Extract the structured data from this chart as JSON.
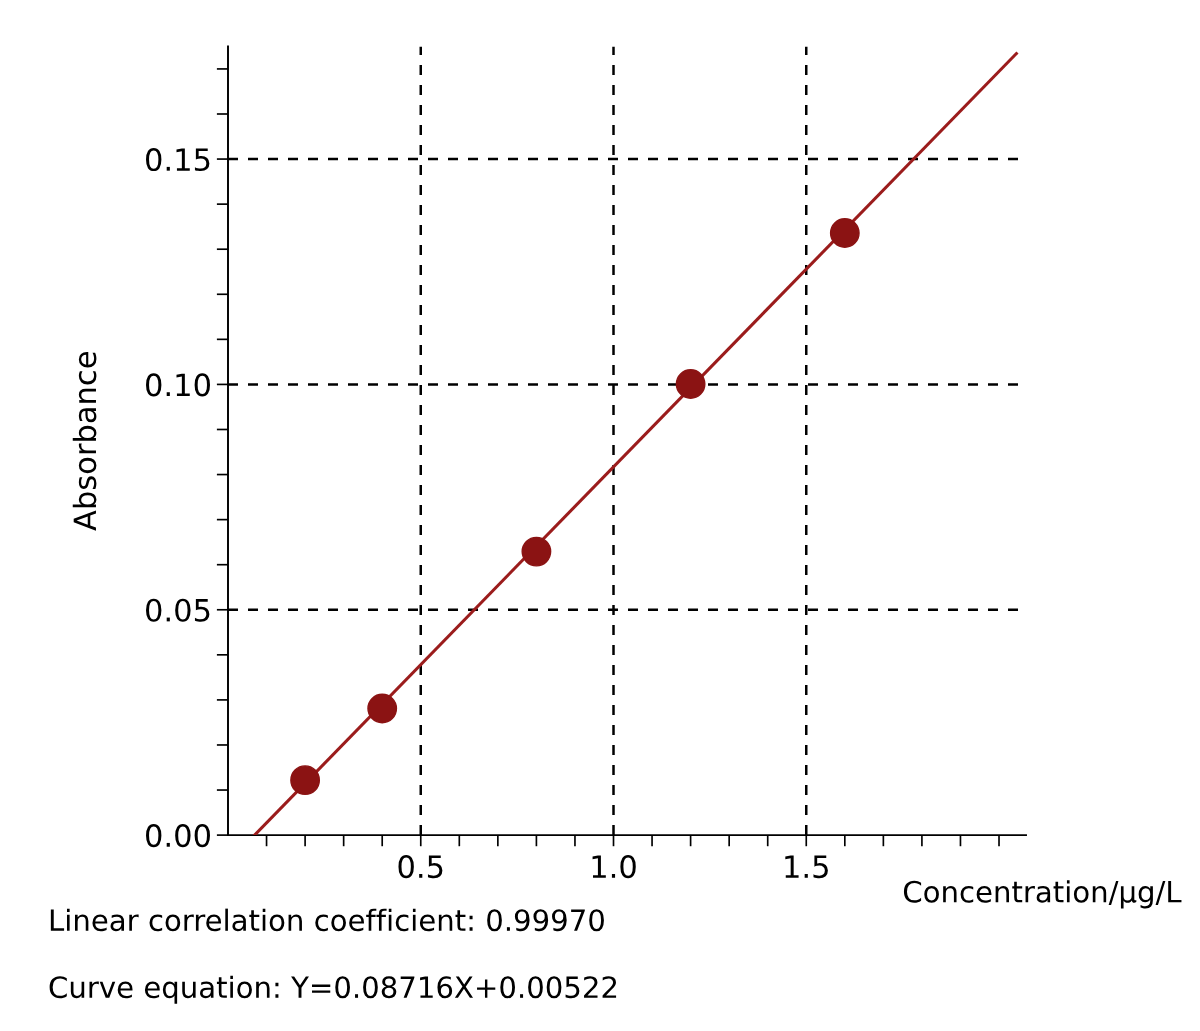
{
  "chart_data": {
    "type": "scatter",
    "xlabel": "Concentration/μg/L",
    "ylabel": "Absorbance",
    "xlim": [
      0,
      2.07
    ],
    "ylim": [
      0,
      0.175
    ],
    "xticks": [
      {
        "value": 0.1,
        "label": null
      },
      {
        "value": 0.2,
        "label": null
      },
      {
        "value": 0.3,
        "label": null
      },
      {
        "value": 0.4,
        "label": null
      },
      {
        "value": 0.5,
        "label": "0.5"
      },
      {
        "value": 0.6,
        "label": null
      },
      {
        "value": 0.7,
        "label": null
      },
      {
        "value": 0.8,
        "label": null
      },
      {
        "value": 0.9,
        "label": null
      },
      {
        "value": 1.0,
        "label": "1.0"
      },
      {
        "value": 1.1,
        "label": null
      },
      {
        "value": 1.2,
        "label": null
      },
      {
        "value": 1.3,
        "label": null
      },
      {
        "value": 1.4,
        "label": null
      },
      {
        "value": 1.5,
        "label": "1.5"
      },
      {
        "value": 1.6,
        "label": null
      },
      {
        "value": 1.7,
        "label": null
      },
      {
        "value": 1.8,
        "label": null
      },
      {
        "value": 1.9,
        "label": null
      },
      {
        "value": 2.0,
        "label": null
      }
    ],
    "yticks": [
      {
        "value": 0.0,
        "label": "0.00"
      },
      {
        "value": 0.01,
        "label": null
      },
      {
        "value": 0.02,
        "label": null
      },
      {
        "value": 0.03,
        "label": null
      },
      {
        "value": 0.04,
        "label": null
      },
      {
        "value": 0.05,
        "label": "0.05"
      },
      {
        "value": 0.06,
        "label": null
      },
      {
        "value": 0.07,
        "label": null
      },
      {
        "value": 0.08,
        "label": null
      },
      {
        "value": 0.09,
        "label": null
      },
      {
        "value": 0.1,
        "label": "0.10"
      },
      {
        "value": 0.11,
        "label": null
      },
      {
        "value": 0.12,
        "label": null
      },
      {
        "value": 0.13,
        "label": null
      },
      {
        "value": 0.14,
        "label": null
      },
      {
        "value": 0.15,
        "label": "0.15"
      },
      {
        "value": 0.16,
        "label": null
      },
      {
        "value": 0.17,
        "label": null
      }
    ],
    "grid": true,
    "series": [
      {
        "marker": "circle",
        "color": "#8b1313",
        "x": [
          0.2,
          0.4,
          0.8,
          1.2,
          1.6
        ],
        "values": [
          0.0122,
          0.0281,
          0.0629,
          0.1001,
          0.1336
        ]
      },
      {
        "type": "line",
        "color": "#9b1c1c",
        "line_style": "solid",
        "x": [
          0.069,
          2.045
        ],
        "values": [
          0.0,
          0.1734
        ]
      }
    ],
    "annotations": [
      "Linear correlation coefficient: 0.99970",
      "Curve equation: Y=0.08716X+0.00522"
    ]
  }
}
